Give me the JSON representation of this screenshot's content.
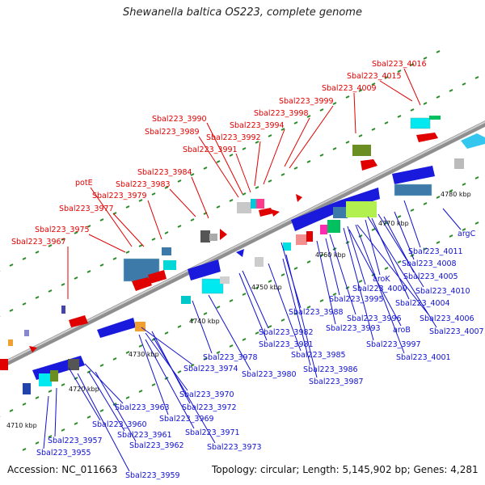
{
  "title": "Shewanella baltica OS223, complete genome",
  "footer": {
    "accession": "Accession: NC_011663",
    "summary": "Topology: circular; Length: 5,145,902 bp; Genes: 4,281"
  },
  "colors": {
    "red_label": "#e00000",
    "blue_label": "#1010d0",
    "leader_red": "#e00000",
    "leader_blue": "#1010d0",
    "backbone": "#9a9a9a",
    "track_dot": "#2a8a2a"
  },
  "ticks": [
    "4710 kbp",
    "4720 kbp",
    "4730 kbp",
    "4740 kbp",
    "4750 kbp",
    "4760 kbp",
    "4770 kbp",
    "4780 kbp"
  ],
  "top_labels": [
    "Sbal223_4016",
    "Sbal223_4015",
    "Sbal223_4009",
    "Sbal223_3999",
    "Sbal223_3998",
    "Sbal223_3990",
    "Sbal223_3994",
    "Sbal223_3989",
    "Sbal223_3992",
    "Sbal223_3991",
    "Sbal223_3984",
    "potE",
    "Sbal223_3983",
    "Sbal223_3979",
    "Sbal223_3977",
    "Sbal223_3975",
    "Sbal223_3967"
  ],
  "bottom_labels": [
    "argC",
    "Sbal223_4011",
    "Sbal223_4008",
    "Sbal223_4005",
    "aroK",
    "Sbal223_4010",
    "Sbal223_4000",
    "Sbal223_4004",
    "Sbal223_3995",
    "Sbal223_3988",
    "Sbal223_4006",
    "Sbal223_3996",
    "aroB",
    "Sbal223_4007",
    "Sbal223_3993",
    "Sbal223_3982",
    "Sbal223_3981",
    "Sbal223_3997",
    "Sbal223_3985",
    "Sbal223_4001",
    "Sbal223_3978",
    "Sbal223_3974",
    "Sbal223_3980",
    "Sbal223_3986",
    "Sbal223_3987",
    "Sbal223_3970",
    "Sbal223_3963",
    "Sbal223_3972",
    "Sbal223_3969",
    "Sbal223_3960",
    "Sbal223_3971",
    "Sbal223_3961",
    "Sbal223_3957",
    "Sbal223_3962",
    "Sbal223_3973",
    "Sbal223_3955",
    "Sbal223_3959"
  ]
}
